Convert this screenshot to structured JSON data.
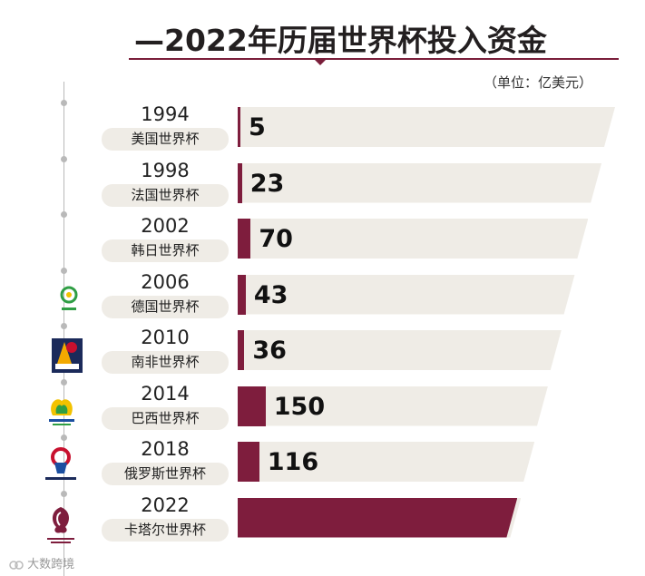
{
  "title": "—2022年历届世界杯投入资金",
  "unit": "（单位：亿美元）",
  "credit": "大数跨境",
  "colors": {
    "bar": "#7e1d3d",
    "track": "#efece6",
    "rule": "#7a1e3a"
  },
  "chart_data": {
    "type": "bar",
    "orientation": "horizontal",
    "title": "—2022年历届世界杯投入资金",
    "xlabel": "",
    "ylabel": "",
    "unit": "（单位：亿美元）",
    "categories": [
      "1994",
      "1998",
      "2002",
      "2006",
      "2010",
      "2014",
      "2018",
      "2022"
    ],
    "labels": [
      "美国世界杯",
      "法国世界杯",
      "韩日世界杯",
      "德国世界杯",
      "南非世界杯",
      "巴西世界杯",
      "俄罗斯世界杯",
      "卡塔尔世界杯"
    ],
    "values": [
      5,
      23,
      70,
      43,
      36,
      150,
      116,
      2200
    ],
    "value_labels": [
      "5",
      "23",
      "70",
      "43",
      "36",
      "150",
      "116",
      ""
    ],
    "grid": false,
    "legend": "none"
  }
}
